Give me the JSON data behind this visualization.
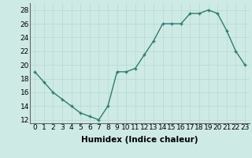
{
  "x": [
    0,
    1,
    2,
    3,
    4,
    5,
    6,
    7,
    8,
    9,
    10,
    11,
    12,
    13,
    14,
    15,
    16,
    17,
    18,
    19,
    20,
    21,
    22,
    23
  ],
  "y": [
    19,
    17.5,
    16,
    15,
    14,
    13,
    12.5,
    12,
    14,
    19,
    19,
    19.5,
    21.5,
    23.5,
    26,
    26,
    26,
    27.5,
    27.5,
    28,
    27.5,
    25,
    22,
    20
  ],
  "line_color": "#2d7d6e",
  "marker_color": "#2d7d6e",
  "bg_color": "#ceeae5",
  "grid_color": "#b8d8d3",
  "xlabel": "Humidex (Indice chaleur)",
  "xlim": [
    -0.5,
    23.5
  ],
  "ylim": [
    11.5,
    29
  ],
  "yticks": [
    12,
    14,
    16,
    18,
    20,
    22,
    24,
    26,
    28
  ],
  "xticks": [
    0,
    1,
    2,
    3,
    4,
    5,
    6,
    7,
    8,
    9,
    10,
    11,
    12,
    13,
    14,
    15,
    16,
    17,
    18,
    19,
    20,
    21,
    22,
    23
  ],
  "xlabel_fontsize": 7.5,
  "tick_fontsize": 6.5,
  "linewidth": 1.0,
  "markersize": 2.5
}
